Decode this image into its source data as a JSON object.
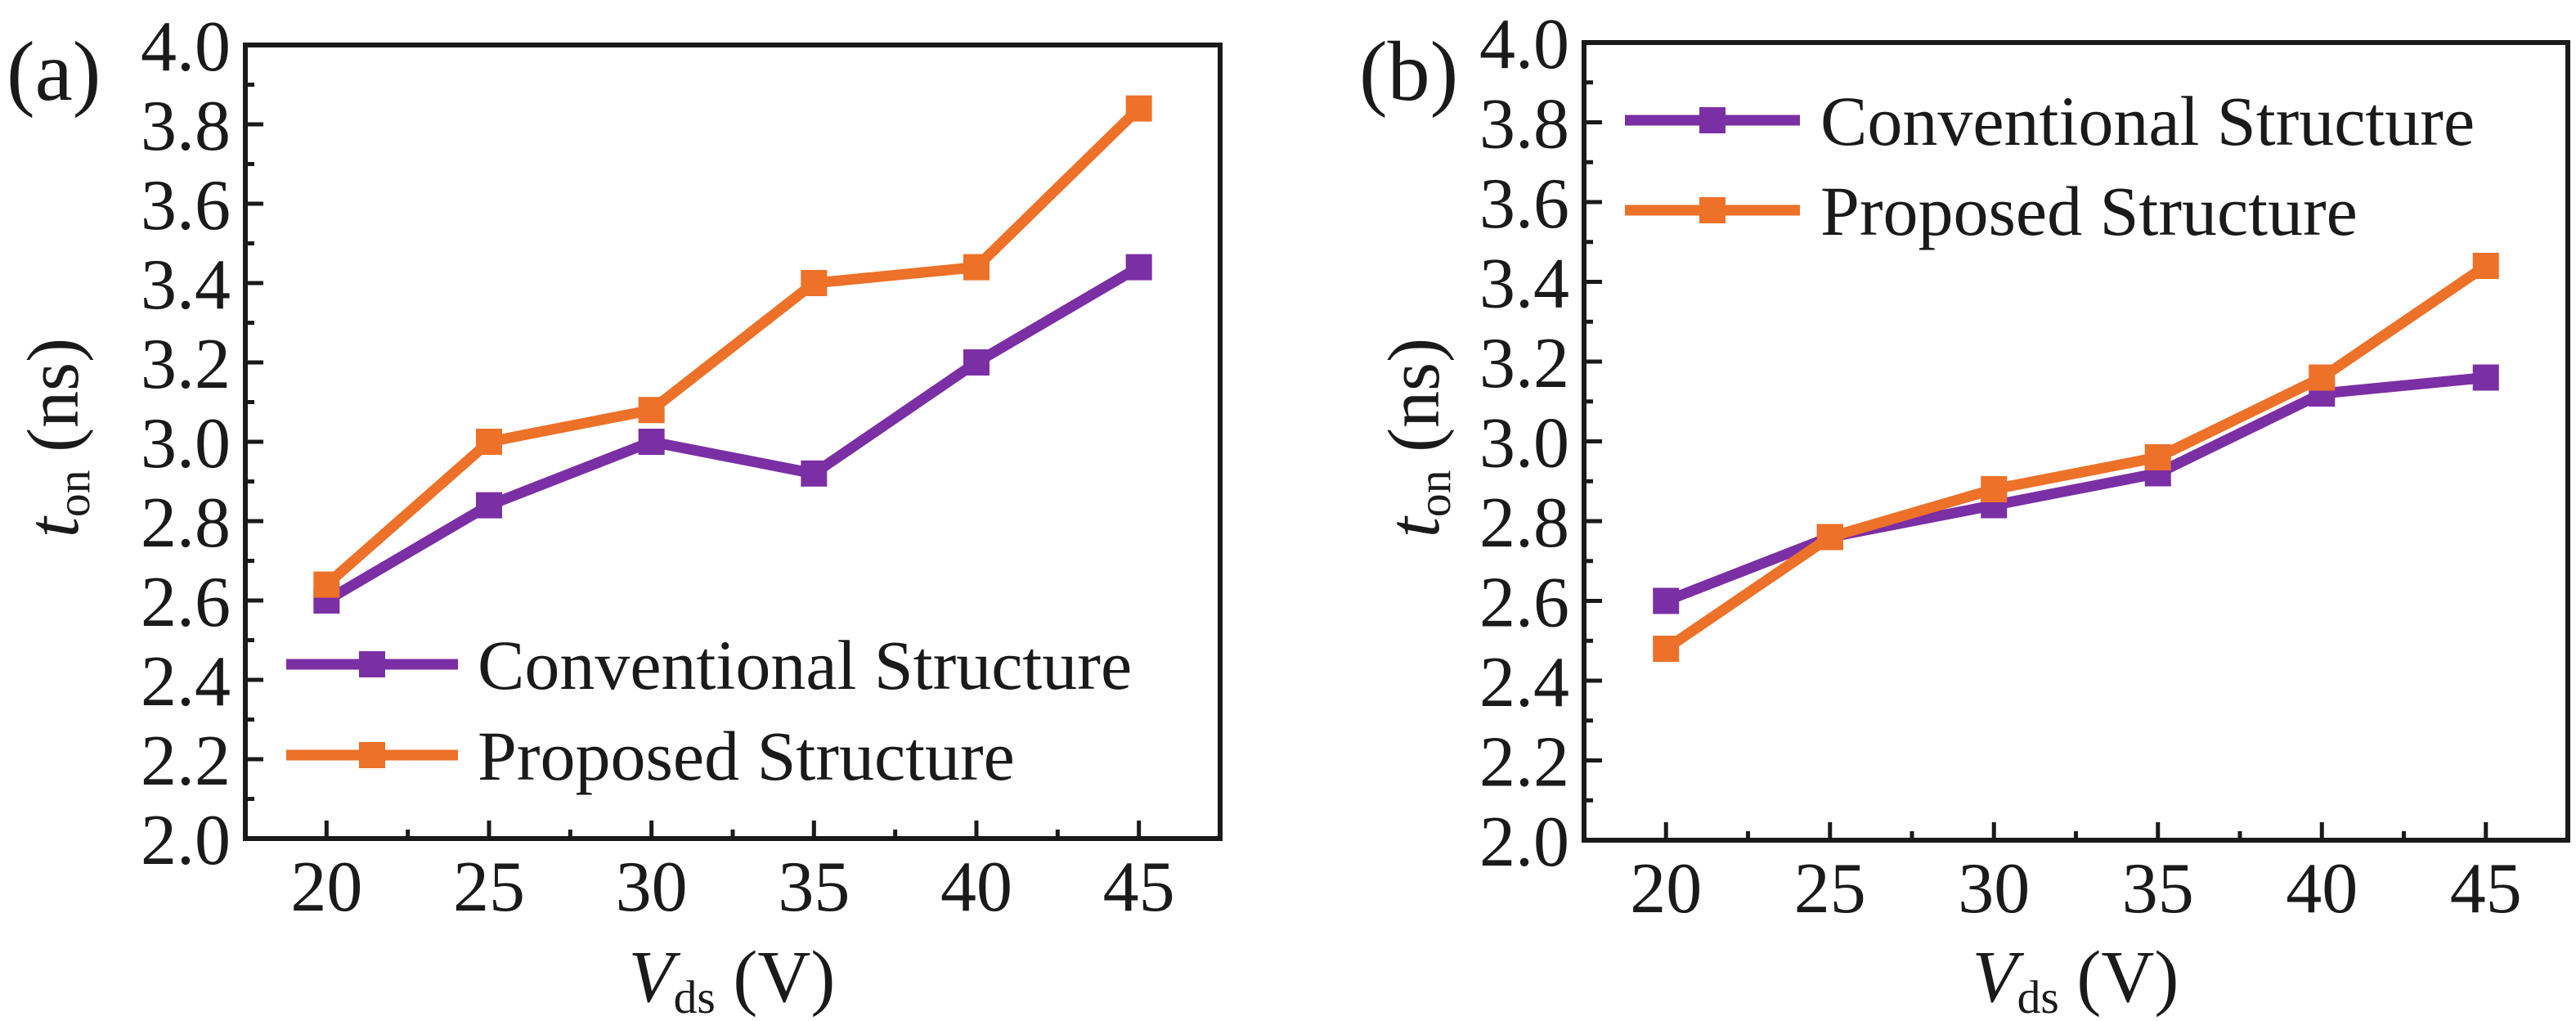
{
  "figure": {
    "background": "#ffffff",
    "panels": [
      {
        "panel_label": "(a)",
        "x_axis": {
          "variable": "V",
          "subscript": "ds",
          "unit": "(V)",
          "ticks": [
            20,
            25,
            30,
            35,
            40,
            45
          ]
        },
        "y_axis": {
          "variable": "t",
          "subscript": "on",
          "unit": "(ns)",
          "ticks": [
            2.0,
            2.2,
            2.4,
            2.6,
            2.8,
            3.0,
            3.2,
            3.4,
            3.6,
            3.8,
            4.0
          ]
        },
        "legend": [
          "Conventional Structure",
          "Proposed Structure"
        ],
        "legend_position": "bottom-left"
      },
      {
        "panel_label": "(b)",
        "x_axis": {
          "variable": "V",
          "subscript": "ds",
          "unit": "(V)",
          "ticks": [
            20,
            25,
            30,
            35,
            40,
            45
          ]
        },
        "y_axis": {
          "variable": "t",
          "subscript": "on",
          "unit": "(ns)",
          "ticks": [
            2.0,
            2.2,
            2.4,
            2.6,
            2.8,
            3.0,
            3.2,
            3.4,
            3.6,
            3.8,
            4.0
          ]
        },
        "legend": [
          "Conventional Structure",
          "Proposed Structure"
        ],
        "legend_position": "top-left"
      }
    ]
  },
  "colors": {
    "conventional": "#7B2FA5",
    "proposed": "#ED7128",
    "axis": "#1a1a1a"
  },
  "chart_data": [
    {
      "type": "line",
      "panel": "(a)",
      "title": "",
      "xlabel": "V_ds (V)",
      "ylabel": "t_on (ns)",
      "x": [
        20,
        25,
        30,
        35,
        40,
        45
      ],
      "xlim": [
        17.5,
        47.5
      ],
      "ylim": [
        2.0,
        4.0
      ],
      "grid": false,
      "legend_position": "bottom-left",
      "series": [
        {
          "name": "Conventional Structure",
          "marker": "square",
          "color": "#7B2FA5",
          "values": [
            2.6,
            2.84,
            3.0,
            2.92,
            3.2,
            3.44
          ]
        },
        {
          "name": "Proposed Structure",
          "marker": "square",
          "color": "#ED7128",
          "values": [
            2.64,
            3.0,
            3.08,
            3.4,
            3.44,
            3.84
          ]
        }
      ]
    },
    {
      "type": "line",
      "panel": "(b)",
      "title": "",
      "xlabel": "V_ds (V)",
      "ylabel": "t_on (ns)",
      "x": [
        20,
        25,
        30,
        35,
        40,
        45
      ],
      "xlim": [
        17.5,
        47.5
      ],
      "ylim": [
        2.0,
        4.0
      ],
      "grid": false,
      "legend_position": "top-left",
      "series": [
        {
          "name": "Conventional Structure",
          "marker": "square",
          "color": "#7B2FA5",
          "values": [
            2.6,
            2.76,
            2.84,
            2.92,
            3.12,
            3.16
          ]
        },
        {
          "name": "Proposed Structure",
          "marker": "square",
          "color": "#ED7128",
          "values": [
            2.48,
            2.76,
            2.88,
            2.96,
            3.16,
            3.44
          ]
        }
      ]
    }
  ]
}
